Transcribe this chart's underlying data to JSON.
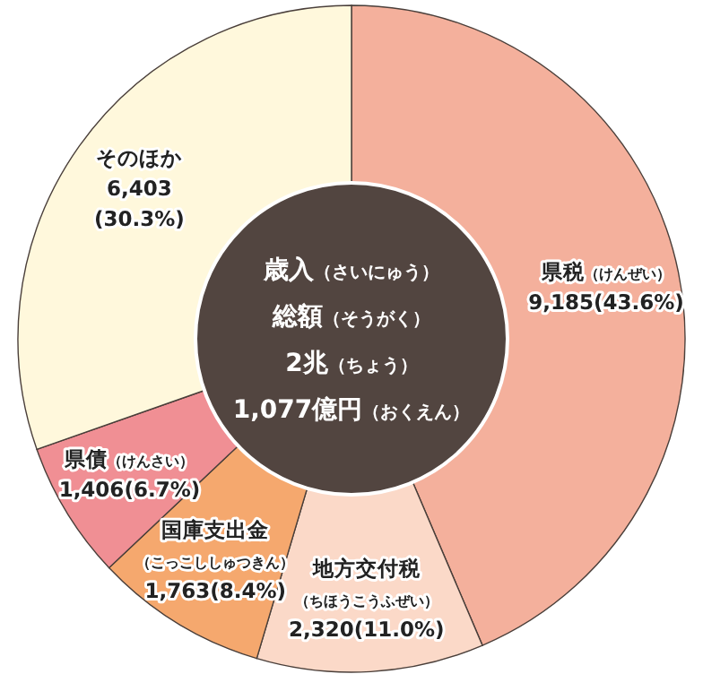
{
  "chart_data": {
    "type": "donut",
    "title": "歳入（さいにゅう）総額（そうがく）2兆（ちょう）1,077億円（おくえん）",
    "categories": [
      "県税（けんぜい）",
      "地方交付税（ちほうこうふぜい）",
      "国庫支出金（こっこししゅつきん）",
      "県債（けんさい）",
      "そのほか"
    ],
    "values": [
      9185,
      2320,
      1763,
      1406,
      6403
    ],
    "colors": [
      "#f4b09c",
      "#fbd9c8",
      "#f5a86e",
      "#f08f94",
      "#fff8dc"
    ],
    "value_labels": [
      "9,185(43.6%)",
      "2,320(11.0%)",
      "1,763(8.4%)",
      "1,406(6.7%)",
      "6,403(30.3%)"
    ]
  }
}
